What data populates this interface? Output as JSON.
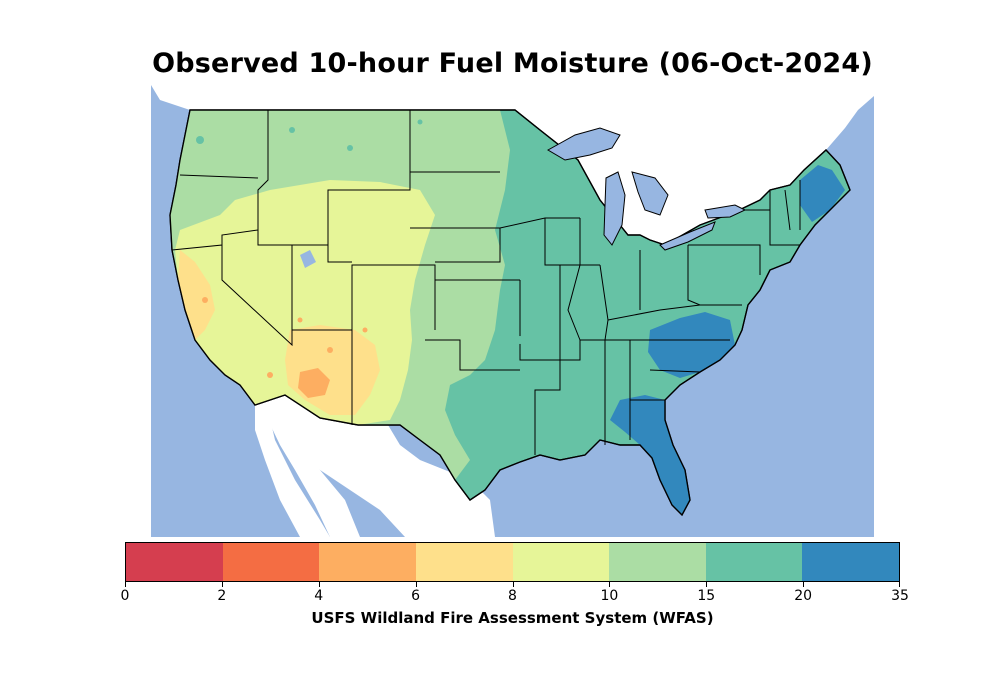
{
  "title": "Observed 10-hour Fuel Moisture (06-Oct-2024)",
  "colorbar": {
    "label": "USFS Wildland Fire Assessment System (WFAS)",
    "ticks": [
      "0",
      "2",
      "4",
      "6",
      "8",
      "10",
      "15",
      "20",
      "35"
    ],
    "bins": [
      {
        "range": "0-2",
        "color": "#d53e4f"
      },
      {
        "range": "2-4",
        "color": "#f46d43"
      },
      {
        "range": "4-6",
        "color": "#fdae61"
      },
      {
        "range": "6-8",
        "color": "#fee08b"
      },
      {
        "range": "8-10",
        "color": "#e6f598"
      },
      {
        "range": "10-15",
        "color": "#abdda4"
      },
      {
        "range": "15-20",
        "color": "#66c2a5"
      },
      {
        "range": "20-35",
        "color": "#3288bd"
      }
    ]
  },
  "map": {
    "region": "Contiguous United States",
    "water_color": "#97b6e1",
    "land_outside_color": "#ffffff",
    "border_color": "#000000"
  }
}
